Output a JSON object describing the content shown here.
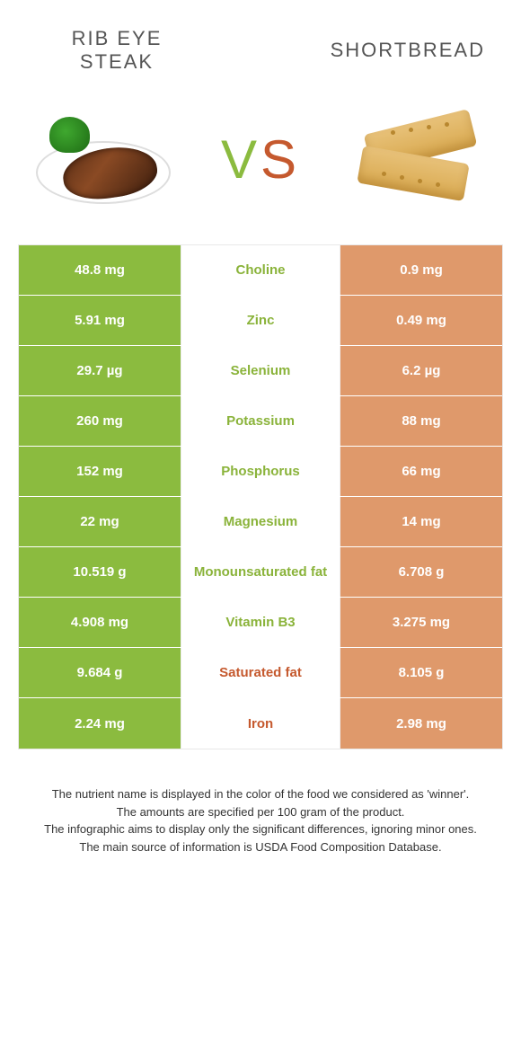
{
  "food_left": {
    "title": "Rib eye steak",
    "color": "#8bbb3f"
  },
  "food_right": {
    "title": "Shortbread",
    "color": "#df996b"
  },
  "vs": {
    "v": "V",
    "s": "S"
  },
  "colors": {
    "left_bg": "#8bbb3f",
    "right_bg": "#df996b",
    "mid_green": "#8ab33a",
    "mid_orange": "#c5592e"
  },
  "rows": [
    {
      "nutrient": "Choline",
      "left": "48.8 mg",
      "right": "0.9 mg",
      "winner": "left"
    },
    {
      "nutrient": "Zinc",
      "left": "5.91 mg",
      "right": "0.49 mg",
      "winner": "left"
    },
    {
      "nutrient": "Selenium",
      "left": "29.7 µg",
      "right": "6.2 µg",
      "winner": "left"
    },
    {
      "nutrient": "Potassium",
      "left": "260 mg",
      "right": "88 mg",
      "winner": "left"
    },
    {
      "nutrient": "Phosphorus",
      "left": "152 mg",
      "right": "66 mg",
      "winner": "left"
    },
    {
      "nutrient": "Magnesium",
      "left": "22 mg",
      "right": "14 mg",
      "winner": "left"
    },
    {
      "nutrient": "Monounsaturated fat",
      "left": "10.519 g",
      "right": "6.708 g",
      "winner": "left"
    },
    {
      "nutrient": "Vitamin B3",
      "left": "4.908 mg",
      "right": "3.275 mg",
      "winner": "left"
    },
    {
      "nutrient": "Saturated fat",
      "left": "9.684 g",
      "right": "8.105 g",
      "winner": "right"
    },
    {
      "nutrient": "Iron",
      "left": "2.24 mg",
      "right": "2.98 mg",
      "winner": "right"
    }
  ],
  "footer": {
    "line1": "The nutrient name is displayed in the color of the food we considered as 'winner'.",
    "line2": "The amounts are specified per 100 gram of the product.",
    "line3": "The infographic aims to display only the significant differences, ignoring minor ones.",
    "line4": "The main source of information is USDA Food Composition Database."
  }
}
